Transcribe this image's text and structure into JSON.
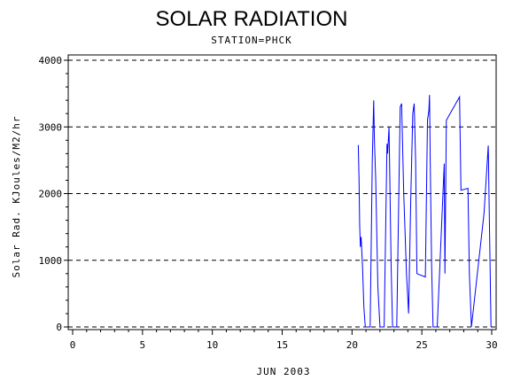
{
  "chart_data": {
    "type": "line",
    "title": "SOLAR RADIATION",
    "subtitle": "STATION=PHCK",
    "xlabel": "JUN 2003",
    "ylabel": "Solar Rad. KJoules/M2/hr",
    "xlim": [
      0,
      30
    ],
    "ylim": [
      0,
      4000
    ],
    "x_ticks": [
      0,
      5,
      10,
      15,
      20,
      25,
      30
    ],
    "y_ticks": [
      0,
      1000,
      2000,
      3000,
      4000
    ],
    "grid": "horizontal dashed",
    "series": [
      {
        "color": "#0000ff",
        "points": [
          [
            20.45,
            2730
          ],
          [
            20.5,
            2250
          ],
          [
            20.55,
            1500
          ],
          [
            20.6,
            1200
          ],
          [
            20.65,
            1350
          ],
          [
            20.75,
            900
          ],
          [
            20.85,
            300
          ],
          [
            20.95,
            0
          ],
          [
            21.3,
            0
          ],
          [
            21.45,
            2500
          ],
          [
            21.55,
            3400
          ],
          [
            21.6,
            2800
          ],
          [
            21.7,
            2200
          ],
          [
            21.85,
            600
          ],
          [
            22.0,
            0
          ],
          [
            22.3,
            0
          ],
          [
            22.5,
            2750
          ],
          [
            22.55,
            2600
          ],
          [
            22.65,
            3000
          ],
          [
            22.75,
            1600
          ],
          [
            22.8,
            900
          ],
          [
            22.9,
            0
          ],
          [
            23.2,
            0
          ],
          [
            23.45,
            3300
          ],
          [
            23.55,
            3350
          ],
          [
            23.7,
            2000
          ],
          [
            23.9,
            800
          ],
          [
            24.05,
            200
          ],
          [
            24.2,
            1900
          ],
          [
            24.35,
            3200
          ],
          [
            24.45,
            3350
          ],
          [
            24.55,
            2500
          ],
          [
            24.65,
            800
          ],
          [
            25.25,
            750
          ],
          [
            25.4,
            3100
          ],
          [
            25.5,
            3250
          ],
          [
            25.55,
            3480
          ],
          [
            25.6,
            2500
          ],
          [
            25.7,
            900
          ],
          [
            25.8,
            0
          ],
          [
            26.1,
            0
          ],
          [
            26.45,
            1700
          ],
          [
            26.6,
            2450
          ],
          [
            26.65,
            800
          ],
          [
            26.75,
            3100
          ],
          [
            27.7,
            3450
          ],
          [
            27.8,
            2050
          ],
          [
            28.3,
            2080
          ],
          [
            28.4,
            800
          ],
          [
            28.55,
            0
          ],
          [
            29.45,
            1700
          ],
          [
            29.75,
            2720
          ],
          [
            29.95,
            0
          ]
        ]
      }
    ]
  }
}
